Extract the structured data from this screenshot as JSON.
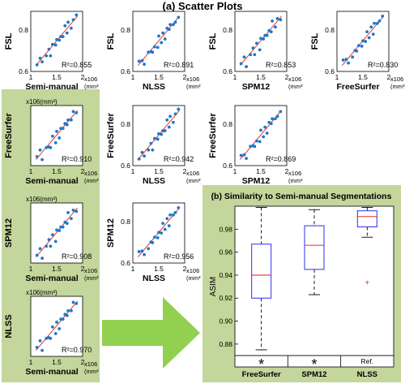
{
  "figure": {
    "title": "(a) Scatter Plots"
  },
  "colors": {
    "panel_green": "#c3d69b",
    "arrow_green": "#92d050",
    "point_blue": "#1f77c9",
    "fit_red": "#e8322d",
    "box_blue": "#2d2df0"
  },
  "units": {
    "power": "x10",
    "exp": "6",
    "mm3": "(mm³)"
  },
  "scatter": {
    "axis_ticks": [
      "1",
      "1.5",
      "2"
    ],
    "y_ticks": [
      "0.6",
      "0.8"
    ],
    "plots": [
      {
        "id": "fsl-semi",
        "ylabel": "FSL",
        "xlabel": "Semi-manual",
        "r2": "R²=0.855",
        "green": false
      },
      {
        "id": "fsl-nlss",
        "ylabel": "FSL",
        "xlabel": "NLSS",
        "r2": "R²=0.891",
        "green": false
      },
      {
        "id": "fsl-spm",
        "ylabel": "FSL",
        "xlabel": "SPM12",
        "r2": "R²=0.853",
        "green": false
      },
      {
        "id": "fsl-fs",
        "ylabel": "FSL",
        "xlabel": "FreeSurfer",
        "r2": "R²=0.830",
        "green": false
      },
      {
        "id": "fs-semi",
        "ylabel": "FreeSurfer",
        "xlabel": "Semi-manual",
        "r2": "R²=0.910",
        "green": true
      },
      {
        "id": "fs-nlss",
        "ylabel": "FreeSurfer",
        "xlabel": "NLSS",
        "r2": "R²=0.942",
        "green": false
      },
      {
        "id": "fs-spm",
        "ylabel": "FreeSurfer",
        "xlabel": "SPM12",
        "r2": "R²=0.869",
        "green": false
      },
      {
        "id": "spm-semi",
        "ylabel": "SPM12",
        "xlabel": "Semi-manual",
        "r2": "R²=0.908",
        "green": true
      },
      {
        "id": "spm-nlss",
        "ylabel": "SPM12",
        "xlabel": "NLSS",
        "r2": "R²=0.956",
        "green": false
      },
      {
        "id": "nlss-semi",
        "ylabel": "NLSS",
        "xlabel": "Semi-manual",
        "r2": "R²=0.970",
        "green": true
      }
    ]
  },
  "chart_data": [
    {
      "type": "box",
      "title": "(b) Similarity to Semi-manual Segmentations",
      "ylabel": "ASIM",
      "ylim": [
        0.87,
        1.0
      ],
      "yticks": [
        0.88,
        0.9,
        0.92,
        0.94,
        0.96,
        0.98
      ],
      "categories": [
        "FreeSurfer",
        "SPM12",
        "NLSS"
      ],
      "markers": [
        "*",
        "*",
        "Ref."
      ],
      "boxes": [
        {
          "name": "FreeSurfer",
          "whisker_low": 0.875,
          "q1": 0.92,
          "median": 0.94,
          "q3": 0.967,
          "whisker_high": 0.999,
          "outliers": []
        },
        {
          "name": "SPM12",
          "whisker_low": 0.923,
          "q1": 0.945,
          "median": 0.966,
          "q3": 0.983,
          "whisker_high": 0.997,
          "outliers": []
        },
        {
          "name": "NLSS",
          "whisker_low": 0.973,
          "q1": 0.982,
          "median": 0.991,
          "q3": 0.996,
          "whisker_high": 0.999,
          "outliers": [
            0.934
          ]
        }
      ]
    }
  ]
}
